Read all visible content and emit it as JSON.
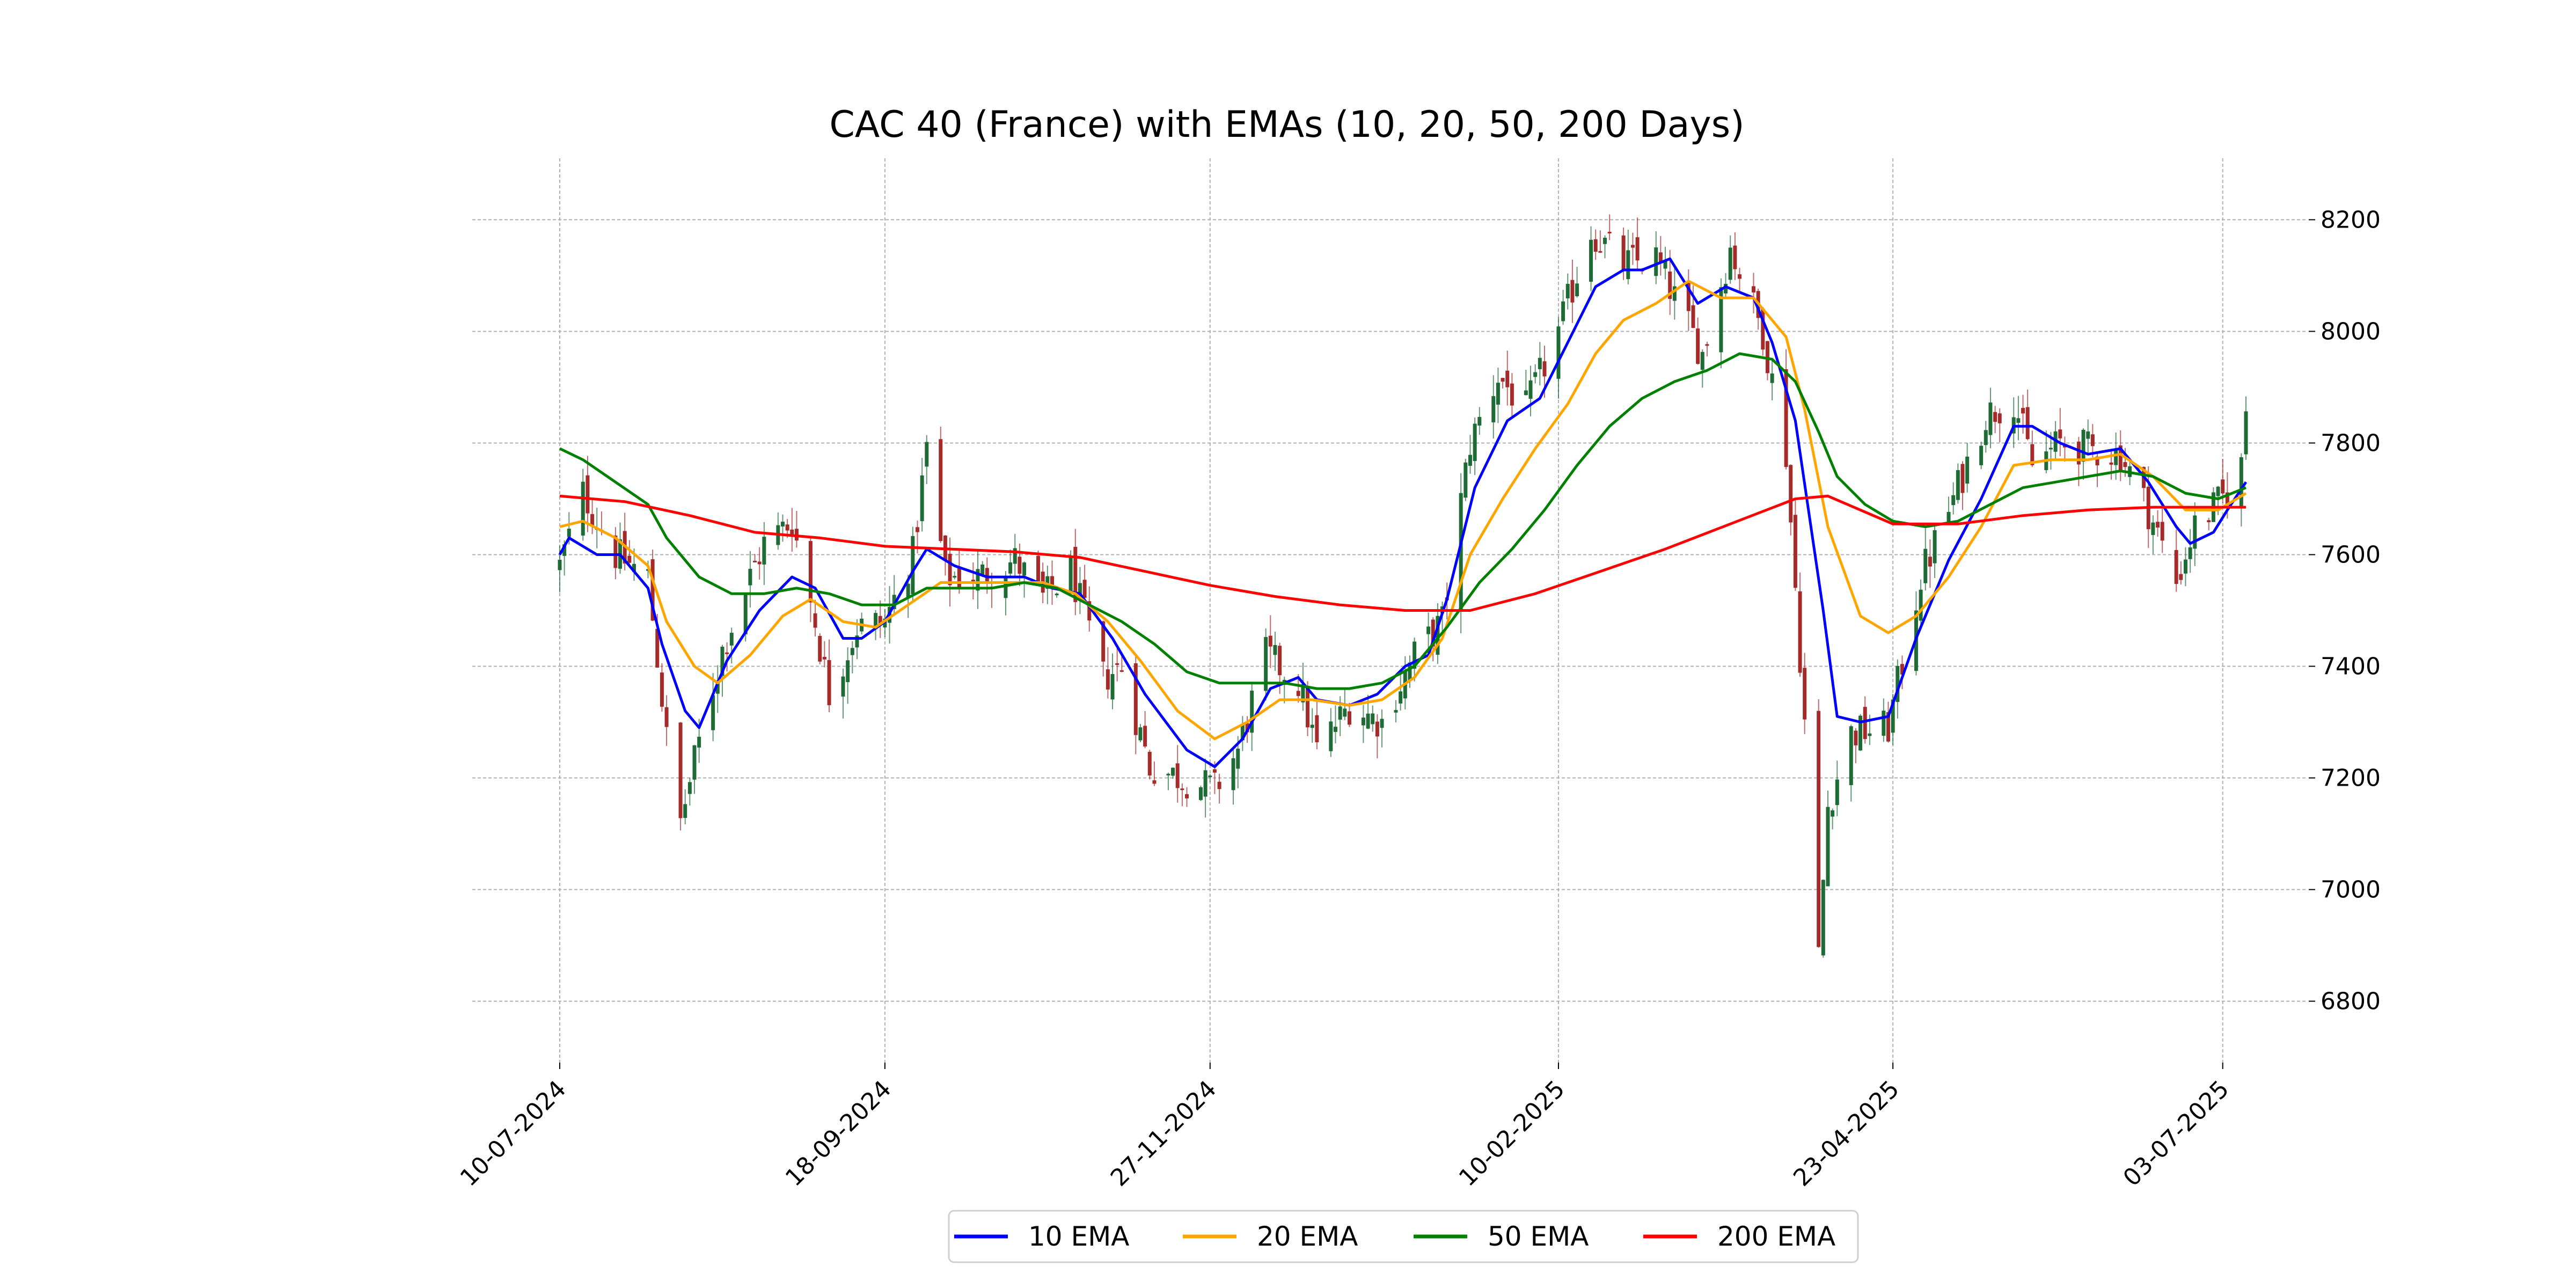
{
  "chart_data": {
    "type": "candlestick",
    "title": "CAC 40 (France) with EMAs (10, 20, 50, 200 Days)",
    "xlabel": "",
    "ylabel": "",
    "x_ticks": [
      "10-07-2024",
      "18-09-2024",
      "27-11-2024",
      "10-02-2025",
      "23-04-2025",
      "03-07-2025"
    ],
    "y_ticks": [
      6800,
      7000,
      7200,
      7400,
      7600,
      7800,
      8000,
      8200
    ],
    "ylim": [
      6690,
      8310
    ],
    "x_range": [
      "10-07-2024",
      "08-07-2025"
    ],
    "grid": true,
    "legend_position": "bottom-center",
    "colors": {
      "up": "#1f6b35",
      "down": "#a52a2a",
      "ema10": "#0000ff",
      "ema20": "#ffa500",
      "ema50": "#008000",
      "ema200": "#ff0000",
      "grid": "#b0b0b0"
    },
    "price_anchors": [
      [
        "10-07-2024",
        7580
      ],
      [
        "15-07-2024",
        7710
      ],
      [
        "22-07-2024",
        7600
      ],
      [
        "29-07-2024",
        7560
      ],
      [
        "02-08-2024",
        7270
      ],
      [
        "05-08-2024",
        7120
      ],
      [
        "08-08-2024",
        7230
      ],
      [
        "14-08-2024",
        7430
      ],
      [
        "20-08-2024",
        7560
      ],
      [
        "23-08-2024",
        7620
      ],
      [
        "29-08-2024",
        7660
      ],
      [
        "03-09-2024",
        7480
      ],
      [
        "06-09-2024",
        7350
      ],
      [
        "12-09-2024",
        7470
      ],
      [
        "18-09-2024",
        7480
      ],
      [
        "24-09-2024",
        7600
      ],
      [
        "27-09-2024",
        7790
      ],
      [
        "01-10-2024",
        7560
      ],
      [
        "08-10-2024",
        7560
      ],
      [
        "16-10-2024",
        7590
      ],
      [
        "22-10-2024",
        7520
      ],
      [
        "28-10-2024",
        7570
      ],
      [
        "04-11-2024",
        7380
      ],
      [
        "08-11-2024",
        7400
      ],
      [
        "14-11-2024",
        7220
      ],
      [
        "21-11-2024",
        7200
      ],
      [
        "28-11-2024",
        7180
      ],
      [
        "03-12-2024",
        7250
      ],
      [
        "09-12-2024",
        7420
      ],
      [
        "16-12-2024",
        7370
      ],
      [
        "20-12-2024",
        7250
      ],
      [
        "27-12-2024",
        7330
      ],
      [
        "03-01-2025",
        7300
      ],
      [
        "10-01-2025",
        7420
      ],
      [
        "16-01-2025",
        7480
      ],
      [
        "22-01-2025",
        7800
      ],
      [
        "28-01-2025",
        7920
      ],
      [
        "03-02-2025",
        7860
      ],
      [
        "10-02-2025",
        8000
      ],
      [
        "17-02-2025",
        8180
      ],
      [
        "24-02-2025",
        8120
      ],
      [
        "03-03-2025",
        8130
      ],
      [
        "07-03-2025",
        8060
      ],
      [
        "13-03-2025",
        7960
      ],
      [
        "19-03-2025",
        8150
      ],
      [
        "26-03-2025",
        8000
      ],
      [
        "31-03-2025",
        7780
      ],
      [
        "04-04-2025",
        7300
      ],
      [
        "07-04-2025",
        6880
      ],
      [
        "09-04-2025",
        7150
      ],
      [
        "14-04-2025",
        7280
      ],
      [
        "22-04-2025",
        7290
      ],
      [
        "29-04-2025",
        7560
      ],
      [
        "06-05-2025",
        7700
      ],
      [
        "13-05-2025",
        7850
      ],
      [
        "19-05-2025",
        7880
      ],
      [
        "23-05-2025",
        7760
      ],
      [
        "29-05-2025",
        7800
      ],
      [
        "04-06-2025",
        7790
      ],
      [
        "11-06-2025",
        7780
      ],
      [
        "17-06-2025",
        7680
      ],
      [
        "23-06-2025",
        7550
      ],
      [
        "27-06-2025",
        7650
      ],
      [
        "03-07-2025",
        7700
      ],
      [
        "07-07-2025",
        7760
      ],
      [
        "08-07-2025",
        7860
      ]
    ],
    "series": [
      {
        "name": "10 EMA",
        "color": "#0000ff",
        "points": [
          [
            "10-07-2024",
            7600
          ],
          [
            "12-07-2024",
            7630
          ],
          [
            "18-07-2024",
            7600
          ],
          [
            "23-07-2024",
            7600
          ],
          [
            "29-07-2024",
            7540
          ],
          [
            "01-08-2024",
            7440
          ],
          [
            "06-08-2024",
            7320
          ],
          [
            "09-08-2024",
            7290
          ],
          [
            "15-08-2024",
            7410
          ],
          [
            "22-08-2024",
            7500
          ],
          [
            "29-08-2024",
            7560
          ],
          [
            "03-09-2024",
            7540
          ],
          [
            "09-09-2024",
            7450
          ],
          [
            "13-09-2024",
            7450
          ],
          [
            "18-09-2024",
            7480
          ],
          [
            "24-09-2024",
            7570
          ],
          [
            "27-09-2024",
            7610
          ],
          [
            "03-10-2024",
            7580
          ],
          [
            "10-10-2024",
            7560
          ],
          [
            "18-10-2024",
            7560
          ],
          [
            "24-10-2024",
            7540
          ],
          [
            "30-10-2024",
            7530
          ],
          [
            "06-11-2024",
            7450
          ],
          [
            "13-11-2024",
            7350
          ],
          [
            "22-11-2024",
            7250
          ],
          [
            "28-11-2024",
            7220
          ],
          [
            "04-12-2024",
            7270
          ],
          [
            "10-12-2024",
            7360
          ],
          [
            "16-12-2024",
            7380
          ],
          [
            "20-12-2024",
            7340
          ],
          [
            "27-12-2024",
            7330
          ],
          [
            "02-01-2025",
            7350
          ],
          [
            "08-01-2025",
            7400
          ],
          [
            "13-01-2025",
            7420
          ],
          [
            "17-01-2025",
            7520
          ],
          [
            "23-01-2025",
            7720
          ],
          [
            "30-01-2025",
            7840
          ],
          [
            "06-02-2025",
            7880
          ],
          [
            "12-02-2025",
            7980
          ],
          [
            "18-02-2025",
            8080
          ],
          [
            "24-02-2025",
            8110
          ],
          [
            "28-02-2025",
            8110
          ],
          [
            "06-03-2025",
            8130
          ],
          [
            "12-03-2025",
            8050
          ],
          [
            "18-03-2025",
            8080
          ],
          [
            "24-03-2025",
            8060
          ],
          [
            "28-03-2025",
            7980
          ],
          [
            "02-04-2025",
            7840
          ],
          [
            "08-04-2025",
            7500
          ],
          [
            "11-04-2025",
            7310
          ],
          [
            "16-04-2025",
            7300
          ],
          [
            "22-04-2025",
            7310
          ],
          [
            "28-04-2025",
            7450
          ],
          [
            "05-05-2025",
            7590
          ],
          [
            "12-05-2025",
            7700
          ],
          [
            "19-05-2025",
            7830
          ],
          [
            "23-05-2025",
            7830
          ],
          [
            "29-05-2025",
            7800
          ],
          [
            "04-06-2025",
            7780
          ],
          [
            "11-06-2025",
            7790
          ],
          [
            "17-06-2025",
            7730
          ],
          [
            "23-06-2025",
            7650
          ],
          [
            "26-06-2025",
            7620
          ],
          [
            "01-07-2025",
            7640
          ],
          [
            "04-07-2025",
            7680
          ],
          [
            "08-07-2025",
            7730
          ]
        ]
      },
      {
        "name": "20 EMA",
        "color": "#ffa500",
        "points": [
          [
            "10-07-2024",
            7650
          ],
          [
            "15-07-2024",
            7660
          ],
          [
            "22-07-2024",
            7630
          ],
          [
            "29-07-2024",
            7580
          ],
          [
            "02-08-2024",
            7480
          ],
          [
            "08-08-2024",
            7400
          ],
          [
            "13-08-2024",
            7370
          ],
          [
            "20-08-2024",
            7420
          ],
          [
            "27-08-2024",
            7490
          ],
          [
            "02-09-2024",
            7520
          ],
          [
            "09-09-2024",
            7480
          ],
          [
            "16-09-2024",
            7470
          ],
          [
            "23-09-2024",
            7510
          ],
          [
            "30-09-2024",
            7550
          ],
          [
            "07-10-2024",
            7550
          ],
          [
            "15-10-2024",
            7550
          ],
          [
            "22-10-2024",
            7550
          ],
          [
            "29-10-2024",
            7530
          ],
          [
            "05-11-2024",
            7480
          ],
          [
            "12-11-2024",
            7410
          ],
          [
            "20-11-2024",
            7320
          ],
          [
            "28-11-2024",
            7270
          ],
          [
            "05-12-2024",
            7300
          ],
          [
            "12-12-2024",
            7340
          ],
          [
            "19-12-2024",
            7340
          ],
          [
            "27-12-2024",
            7330
          ],
          [
            "03-01-2025",
            7340
          ],
          [
            "10-01-2025",
            7380
          ],
          [
            "16-01-2025",
            7450
          ],
          [
            "22-01-2025",
            7600
          ],
          [
            "29-01-2025",
            7700
          ],
          [
            "05-02-2025",
            7790
          ],
          [
            "12-02-2025",
            7870
          ],
          [
            "18-02-2025",
            7960
          ],
          [
            "24-02-2025",
            8020
          ],
          [
            "03-03-2025",
            8050
          ],
          [
            "10-03-2025",
            8090
          ],
          [
            "17-03-2025",
            8060
          ],
          [
            "24-03-2025",
            8060
          ],
          [
            "31-03-2025",
            7990
          ],
          [
            "04-04-2025",
            7860
          ],
          [
            "09-04-2025",
            7650
          ],
          [
            "16-04-2025",
            7490
          ],
          [
            "22-04-2025",
            7460
          ],
          [
            "28-04-2025",
            7490
          ],
          [
            "05-05-2025",
            7560
          ],
          [
            "12-05-2025",
            7650
          ],
          [
            "19-05-2025",
            7760
          ],
          [
            "27-05-2025",
            7770
          ],
          [
            "04-06-2025",
            7770
          ],
          [
            "11-06-2025",
            7780
          ],
          [
            "18-06-2025",
            7740
          ],
          [
            "25-06-2025",
            7680
          ],
          [
            "02-07-2025",
            7680
          ],
          [
            "08-07-2025",
            7710
          ]
        ]
      },
      {
        "name": "50 EMA",
        "color": "#008000",
        "points": [
          [
            "10-07-2024",
            7790
          ],
          [
            "15-07-2024",
            7770
          ],
          [
            "22-07-2024",
            7730
          ],
          [
            "29-07-2024",
            7690
          ],
          [
            "02-08-2024",
            7630
          ],
          [
            "09-08-2024",
            7560
          ],
          [
            "16-08-2024",
            7530
          ],
          [
            "23-08-2024",
            7530
          ],
          [
            "30-08-2024",
            7540
          ],
          [
            "06-09-2024",
            7530
          ],
          [
            "13-09-2024",
            7510
          ],
          [
            "20-09-2024",
            7510
          ],
          [
            "27-09-2024",
            7540
          ],
          [
            "04-10-2024",
            7540
          ],
          [
            "11-10-2024",
            7540
          ],
          [
            "18-10-2024",
            7550
          ],
          [
            "25-10-2024",
            7540
          ],
          [
            "01-11-2024",
            7510
          ],
          [
            "08-11-2024",
            7480
          ],
          [
            "15-11-2024",
            7440
          ],
          [
            "22-11-2024",
            7390
          ],
          [
            "29-11-2024",
            7370
          ],
          [
            "06-12-2024",
            7370
          ],
          [
            "13-12-2024",
            7370
          ],
          [
            "20-12-2024",
            7360
          ],
          [
            "27-12-2024",
            7360
          ],
          [
            "03-01-2025",
            7370
          ],
          [
            "10-01-2025",
            7400
          ],
          [
            "17-01-2025",
            7470
          ],
          [
            "24-01-2025",
            7550
          ],
          [
            "31-01-2025",
            7610
          ],
          [
            "07-02-2025",
            7680
          ],
          [
            "14-02-2025",
            7760
          ],
          [
            "21-02-2025",
            7830
          ],
          [
            "28-02-2025",
            7880
          ],
          [
            "07-03-2025",
            7910
          ],
          [
            "14-03-2025",
            7930
          ],
          [
            "21-03-2025",
            7960
          ],
          [
            "28-03-2025",
            7950
          ],
          [
            "02-04-2025",
            7910
          ],
          [
            "07-04-2025",
            7820
          ],
          [
            "11-04-2025",
            7740
          ],
          [
            "17-04-2025",
            7690
          ],
          [
            "23-04-2025",
            7660
          ],
          [
            "30-04-2025",
            7650
          ],
          [
            "07-05-2025",
            7660
          ],
          [
            "14-05-2025",
            7690
          ],
          [
            "21-05-2025",
            7720
          ],
          [
            "28-05-2025",
            7730
          ],
          [
            "04-06-2025",
            7740
          ],
          [
            "11-06-2025",
            7750
          ],
          [
            "18-06-2025",
            7740
          ],
          [
            "25-06-2025",
            7710
          ],
          [
            "02-07-2025",
            7700
          ],
          [
            "08-07-2025",
            7720
          ]
        ]
      },
      {
        "name": "200 EMA",
        "color": "#ff0000",
        "points": [
          [
            "10-07-2024",
            7705
          ],
          [
            "24-07-2024",
            7695
          ],
          [
            "07-08-2024",
            7670
          ],
          [
            "21-08-2024",
            7640
          ],
          [
            "04-09-2024",
            7630
          ],
          [
            "18-09-2024",
            7615
          ],
          [
            "02-10-2024",
            7610
          ],
          [
            "16-10-2024",
            7605
          ],
          [
            "30-10-2024",
            7595
          ],
          [
            "13-11-2024",
            7570
          ],
          [
            "27-11-2024",
            7545
          ],
          [
            "11-12-2024",
            7525
          ],
          [
            "25-12-2024",
            7510
          ],
          [
            "08-01-2025",
            7500
          ],
          [
            "22-01-2025",
            7500
          ],
          [
            "05-02-2025",
            7530
          ],
          [
            "19-02-2025",
            7570
          ],
          [
            "05-03-2025",
            7610
          ],
          [
            "19-03-2025",
            7655
          ],
          [
            "02-04-2025",
            7700
          ],
          [
            "09-04-2025",
            7705
          ],
          [
            "16-04-2025",
            7680
          ],
          [
            "23-04-2025",
            7655
          ],
          [
            "07-05-2025",
            7655
          ],
          [
            "21-05-2025",
            7670
          ],
          [
            "04-06-2025",
            7680
          ],
          [
            "18-06-2025",
            7685
          ],
          [
            "02-07-2025",
            7685
          ],
          [
            "08-07-2025",
            7685
          ]
        ]
      }
    ]
  }
}
